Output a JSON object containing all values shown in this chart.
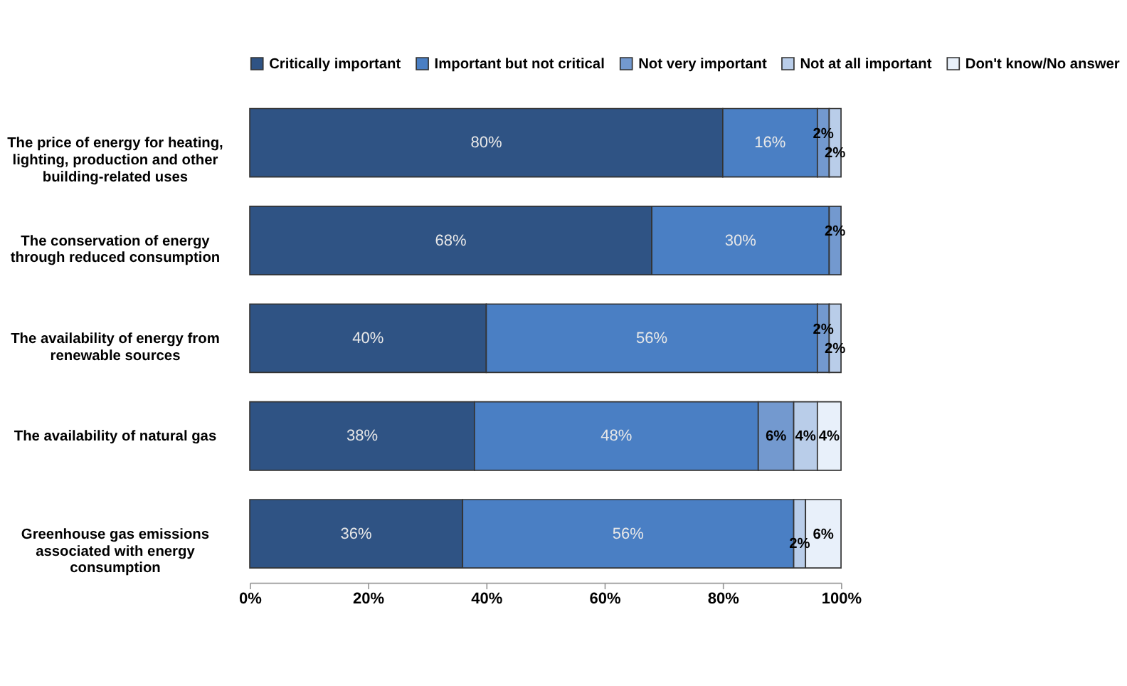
{
  "chart_data": {
    "type": "bar",
    "orientation": "horizontal",
    "stacked": true,
    "categories": [
      "The price of energy for heating, lighting, production and other building-related uses",
      "The conservation of energy through reduced consumption",
      "The availability of energy from renewable sources",
      "The availability of natural gas",
      "Greenhouse gas emissions associated with energy consumption"
    ],
    "series": [
      {
        "name": "Critically important",
        "color": "#2f5384",
        "values": [
          80,
          68,
          40,
          38,
          36
        ],
        "value_labels": [
          "80%",
          "68%",
          "40%",
          "38%",
          "36%"
        ]
      },
      {
        "name": "Important but not critical",
        "color": "#4a7fc4",
        "values": [
          16,
          30,
          56,
          48,
          56
        ],
        "value_labels": [
          "16%",
          "30%",
          "56%",
          "48%",
          "56%"
        ]
      },
      {
        "name": "Not very important",
        "color": "#7399cf",
        "values": [
          2,
          2,
          2,
          6,
          null
        ],
        "value_labels": [
          "2%",
          "2%",
          "2%",
          "6%",
          null
        ]
      },
      {
        "name": "Not at all important",
        "color": "#b9cde9",
        "values": [
          2,
          null,
          2,
          4,
          2
        ],
        "value_labels": [
          "2%",
          null,
          "2%",
          "4%",
          "2%"
        ]
      },
      {
        "name": "Don't know/No answer",
        "color": "#e8f0fa",
        "values": [
          null,
          null,
          null,
          4,
          6
        ],
        "value_labels": [
          null,
          null,
          null,
          "4%",
          "6%"
        ]
      }
    ],
    "xlim": [
      0,
      100
    ],
    "xticks": [
      {
        "value": 0,
        "label": "0%"
      },
      {
        "value": 20,
        "label": "20%"
      },
      {
        "value": 40,
        "label": "40%"
      },
      {
        "value": 60,
        "label": "60%"
      },
      {
        "value": 80,
        "label": "80%"
      },
      {
        "value": 100,
        "label": "100%"
      }
    ],
    "grid": false,
    "legend": "top"
  }
}
